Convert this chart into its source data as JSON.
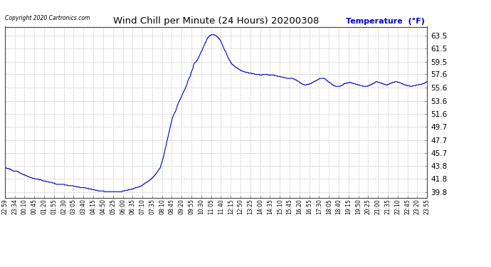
{
  "title": "Wind Chill per Minute (24 Hours) 20200308",
  "ylabel": "Temperature  (°F)",
  "copyright_text": "Copyright 2020 Cartronics.com",
  "line_color": "#0000cc",
  "background_color": "#ffffff",
  "grid_color": "#bbbbbb",
  "ylabel_color": "#0000cc",
  "title_color": "#000000",
  "ylim": [
    39.0,
    64.8
  ],
  "yticks": [
    39.8,
    41.8,
    43.8,
    45.7,
    47.7,
    49.7,
    51.6,
    53.6,
    55.6,
    57.6,
    59.5,
    61.5,
    63.5
  ],
  "xtick_labels": [
    "22:59",
    "23:34",
    "00:10",
    "00:45",
    "01:20",
    "01:55",
    "02:30",
    "03:05",
    "03:40",
    "04:15",
    "04:50",
    "05:25",
    "06:00",
    "06:35",
    "07:10",
    "07:35",
    "08:10",
    "08:45",
    "09:20",
    "09:55",
    "10:30",
    "11:05",
    "11:40",
    "12:15",
    "12:50",
    "13:25",
    "14:00",
    "14:35",
    "15:10",
    "15:45",
    "16:20",
    "16:55",
    "17:30",
    "18:05",
    "18:40",
    "19:15",
    "19:50",
    "20:25",
    "21:00",
    "21:35",
    "22:10",
    "22:45",
    "23:20",
    "23:55"
  ],
  "n_ticks": 44,
  "data_points": [
    [
      0,
      43.5
    ],
    [
      20,
      43.4
    ],
    [
      35,
      43.3
    ],
    [
      55,
      43.0
    ],
    [
      80,
      43.0
    ],
    [
      100,
      42.7
    ],
    [
      120,
      42.5
    ],
    [
      140,
      42.3
    ],
    [
      160,
      42.1
    ],
    [
      185,
      41.9
    ],
    [
      210,
      41.8
    ],
    [
      235,
      41.7
    ],
    [
      255,
      41.5
    ],
    [
      280,
      41.4
    ],
    [
      300,
      41.3
    ],
    [
      320,
      41.2
    ],
    [
      340,
      41.0
    ],
    [
      360,
      41.0
    ],
    [
      380,
      41.0
    ],
    [
      400,
      40.9
    ],
    [
      420,
      40.8
    ],
    [
      440,
      40.8
    ],
    [
      460,
      40.7
    ],
    [
      480,
      40.6
    ],
    [
      500,
      40.5
    ],
    [
      520,
      40.5
    ],
    [
      540,
      40.4
    ],
    [
      560,
      40.3
    ],
    [
      580,
      40.2
    ],
    [
      600,
      40.1
    ],
    [
      620,
      40.0
    ],
    [
      640,
      40.0
    ],
    [
      660,
      39.9
    ],
    [
      680,
      39.9
    ],
    [
      700,
      39.9
    ],
    [
      720,
      39.9
    ],
    [
      740,
      39.9
    ],
    [
      760,
      39.9
    ],
    [
      780,
      40.0
    ],
    [
      800,
      40.1
    ],
    [
      820,
      40.2
    ],
    [
      840,
      40.3
    ],
    [
      860,
      40.5
    ],
    [
      880,
      40.6
    ],
    [
      900,
      40.8
    ],
    [
      910,
      41.0
    ],
    [
      930,
      41.3
    ],
    [
      950,
      41.6
    ],
    [
      970,
      42.0
    ],
    [
      990,
      42.5
    ],
    [
      1005,
      43.0
    ],
    [
      1020,
      43.5
    ],
    [
      1030,
      44.2
    ],
    [
      1040,
      45.0
    ],
    [
      1050,
      46.0
    ],
    [
      1060,
      47.0
    ],
    [
      1070,
      48.0
    ],
    [
      1080,
      49.0
    ],
    [
      1090,
      50.0
    ],
    [
      1100,
      51.0
    ],
    [
      1110,
      51.5
    ],
    [
      1115,
      51.8
    ],
    [
      1120,
      52.0
    ],
    [
      1125,
      52.3
    ],
    [
      1135,
      53.0
    ],
    [
      1145,
      53.5
    ],
    [
      1155,
      54.0
    ],
    [
      1165,
      54.5
    ],
    [
      1175,
      55.0
    ],
    [
      1185,
      55.5
    ],
    [
      1195,
      56.0
    ],
    [
      1200,
      56.5
    ],
    [
      1210,
      57.0
    ],
    [
      1215,
      57.2
    ],
    [
      1220,
      57.5
    ],
    [
      1225,
      58.0
    ],
    [
      1230,
      58.2
    ],
    [
      1235,
      58.5
    ],
    [
      1240,
      59.0
    ],
    [
      1245,
      59.3
    ],
    [
      1255,
      59.5
    ],
    [
      1265,
      59.8
    ],
    [
      1270,
      60.0
    ],
    [
      1280,
      60.5
    ],
    [
      1290,
      61.0
    ],
    [
      1300,
      61.5
    ],
    [
      1310,
      62.0
    ],
    [
      1320,
      62.5
    ],
    [
      1330,
      63.0
    ],
    [
      1340,
      63.3
    ],
    [
      1350,
      63.5
    ],
    [
      1360,
      63.6
    ],
    [
      1370,
      63.6
    ],
    [
      1380,
      63.5
    ],
    [
      1390,
      63.4
    ],
    [
      1400,
      63.2
    ],
    [
      1415,
      62.8
    ],
    [
      1430,
      62.0
    ],
    [
      1450,
      61.0
    ],
    [
      1470,
      60.0
    ],
    [
      1490,
      59.2
    ],
    [
      1510,
      58.8
    ],
    [
      1530,
      58.5
    ],
    [
      1550,
      58.2
    ],
    [
      1570,
      58.0
    ],
    [
      1590,
      57.9
    ],
    [
      1610,
      57.8
    ],
    [
      1630,
      57.7
    ],
    [
      1650,
      57.6
    ],
    [
      1665,
      57.6
    ],
    [
      1680,
      57.5
    ],
    [
      1700,
      57.6
    ],
    [
      1720,
      57.6
    ],
    [
      1740,
      57.5
    ],
    [
      1760,
      57.5
    ],
    [
      1780,
      57.4
    ],
    [
      1800,
      57.3
    ],
    [
      1820,
      57.2
    ],
    [
      1840,
      57.1
    ],
    [
      1860,
      57.0
    ],
    [
      1870,
      57.0
    ],
    [
      1890,
      57.0
    ],
    [
      1910,
      56.8
    ],
    [
      1930,
      56.5
    ],
    [
      1950,
      56.2
    ],
    [
      1970,
      56.0
    ],
    [
      1990,
      56.1
    ],
    [
      2010,
      56.2
    ],
    [
      2030,
      56.5
    ],
    [
      2050,
      56.7
    ],
    [
      2070,
      57.0
    ],
    [
      2090,
      57.0
    ],
    [
      2100,
      57.0
    ],
    [
      2110,
      56.8
    ],
    [
      2125,
      56.5
    ],
    [
      2140,
      56.3
    ],
    [
      2150,
      56.1
    ],
    [
      2160,
      55.9
    ],
    [
      2180,
      55.8
    ],
    [
      2200,
      55.8
    ],
    [
      2210,
      55.9
    ],
    [
      2220,
      56.0
    ],
    [
      2230,
      56.2
    ],
    [
      2250,
      56.3
    ],
    [
      2270,
      56.4
    ],
    [
      2280,
      56.3
    ],
    [
      2295,
      56.2
    ],
    [
      2310,
      56.1
    ],
    [
      2325,
      56.0
    ],
    [
      2340,
      55.9
    ],
    [
      2360,
      55.8
    ],
    [
      2380,
      55.8
    ],
    [
      2400,
      56.0
    ],
    [
      2420,
      56.2
    ],
    [
      2440,
      56.5
    ],
    [
      2460,
      56.4
    ],
    [
      2480,
      56.2
    ],
    [
      2495,
      56.1
    ],
    [
      2510,
      56.0
    ],
    [
      2530,
      56.2
    ],
    [
      2550,
      56.4
    ],
    [
      2570,
      56.5
    ],
    [
      2590,
      56.4
    ],
    [
      2610,
      56.2
    ],
    [
      2630,
      56.0
    ],
    [
      2650,
      55.9
    ],
    [
      2670,
      55.8
    ],
    [
      2690,
      55.9
    ],
    [
      2710,
      56.0
    ],
    [
      2730,
      56.1
    ],
    [
      2750,
      56.2
    ],
    [
      2760,
      56.3
    ],
    [
      2775,
      56.5
    ]
  ]
}
